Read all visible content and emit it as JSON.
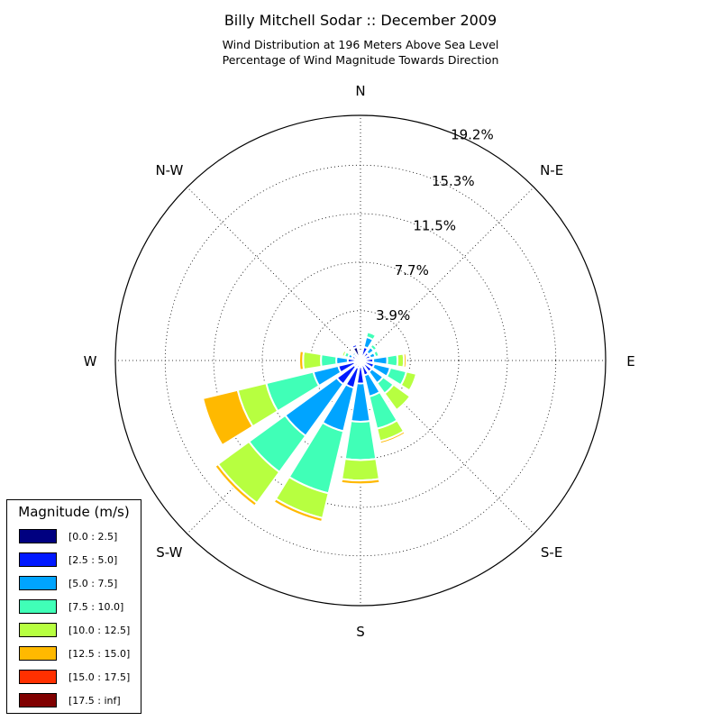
{
  "chart_data": {
    "type": "windrose",
    "title": "Billy Mitchell Sodar :: December 2009",
    "subtitle_lines": [
      "Wind Distribution at 196 Meters Above Sea Level",
      "Percentage of Wind Magnitude Towards Direction"
    ],
    "radial_unit": "%",
    "radial_ticks": [
      "3.9%",
      "7.7%",
      "11.5%",
      "15.3%",
      "19.2%"
    ],
    "radial_max": 19.2,
    "direction_labels": [
      {
        "label": "N",
        "angle": 0
      },
      {
        "label": "N-E",
        "angle": 45
      },
      {
        "label": "E",
        "angle": 90
      },
      {
        "label": "S-E",
        "angle": 135
      },
      {
        "label": "S",
        "angle": 180
      },
      {
        "label": "S-W",
        "angle": 225
      },
      {
        "label": "W",
        "angle": 270
      },
      {
        "label": "N-W",
        "angle": 315
      }
    ],
    "legend": {
      "title": "Magnitude (m/s)",
      "placement": "lower-left",
      "bins": [
        {
          "label": "[0.0 : 2.5]",
          "color": "#000080"
        },
        {
          "label": "[2.5 : 5.0]",
          "color": "#0019ff"
        },
        {
          "label": "[5.0 : 7.5]",
          "color": "#00a4ff"
        },
        {
          "label": "[7.5 : 10.0]",
          "color": "#40ffb7"
        },
        {
          "label": "[10.0 : 12.5]",
          "color": "#b7ff40"
        },
        {
          "label": "[12.5 : 15.0]",
          "color": "#ffb900"
        },
        {
          "label": "[15.0 : 17.5]",
          "color": "#ff3000"
        },
        {
          "label": "[17.5 : inf]",
          "color": "#800000"
        }
      ]
    },
    "sector_width_deg": 22.5,
    "directions": [
      {
        "angle": 0,
        "values": [
          0.2,
          0.3,
          0.1,
          0.1,
          0,
          0,
          0,
          0
        ]
      },
      {
        "angle": 22.5,
        "values": [
          0.3,
          0.8,
          0.8,
          0.4,
          0,
          0,
          0,
          0
        ]
      },
      {
        "angle": 45,
        "values": [
          0.3,
          0.5,
          0.5,
          0.3,
          0,
          0,
          0,
          0
        ]
      },
      {
        "angle": 67.5,
        "values": [
          0.3,
          0.5,
          0.4,
          0.3,
          0,
          0,
          0,
          0
        ]
      },
      {
        "angle": 90,
        "values": [
          0.4,
          0.6,
          1.1,
          0.8,
          0.5,
          0.2,
          0,
          0
        ]
      },
      {
        "angle": 112.5,
        "values": [
          0.4,
          0.7,
          1.3,
          1.3,
          0.8,
          0,
          0,
          0
        ]
      },
      {
        "angle": 135,
        "values": [
          0.4,
          0.7,
          1.1,
          1.0,
          1.6,
          0,
          0,
          0
        ]
      },
      {
        "angle": 157.5,
        "values": [
          0.4,
          0.8,
          1.7,
          2.6,
          1.0,
          0.2,
          0,
          0
        ]
      },
      {
        "angle": 180,
        "values": [
          0.5,
          1.3,
          3.0,
          3.0,
          1.6,
          0.3,
          0,
          0
        ]
      },
      {
        "angle": 202.5,
        "values": [
          0.6,
          1.6,
          3.5,
          5.0,
          2.0,
          0.3,
          0,
          0
        ]
      },
      {
        "angle": 225,
        "values": [
          0.6,
          1.7,
          5.0,
          3.5,
          3.0,
          0.3,
          0,
          0
        ]
      },
      {
        "angle": 247.5,
        "values": [
          0.5,
          1.3,
          2.0,
          3.8,
          2.3,
          2.8,
          0,
          0
        ]
      },
      {
        "angle": 270,
        "values": [
          0.4,
          0.6,
          0.9,
          1.2,
          1.4,
          0.3,
          0,
          0
        ]
      },
      {
        "angle": 292.5,
        "values": [
          0.3,
          0.4,
          0.3,
          0.3,
          0.2,
          0,
          0,
          0
        ]
      },
      {
        "angle": 315,
        "values": [
          0.3,
          0.3,
          0.2,
          0.1,
          0,
          0,
          0,
          0
        ]
      },
      {
        "angle": 337.5,
        "values": [
          1.1,
          0.2,
          0,
          0,
          0,
          0,
          0,
          0
        ]
      }
    ]
  }
}
